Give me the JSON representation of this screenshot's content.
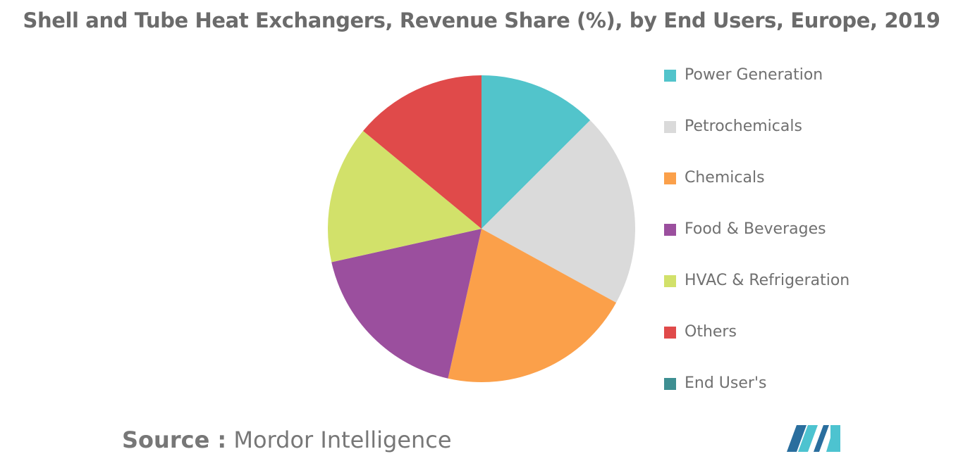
{
  "chart_data": {
    "type": "pie",
    "title": "Shell and Tube Heat Exchangers, Revenue Share (%), by End Users, Europe, 2019",
    "start_angle_deg": 0,
    "direction": "clockwise",
    "legend_position": "right",
    "slices": [
      {
        "name": "Power Generation",
        "value": 12.5,
        "color": "#52C4CB"
      },
      {
        "name": "Petrochemicals",
        "value": 20.5,
        "color": "#DADADA"
      },
      {
        "name": "Chemicals",
        "value": 20.5,
        "color": "#FBA04A"
      },
      {
        "name": "Food & Beverages",
        "value": 18.0,
        "color": "#9B4F9E"
      },
      {
        "name": "HVAC & Refrigeration",
        "value": 14.5,
        "color": "#D2E16A"
      },
      {
        "name": "Others",
        "value": 14.0,
        "color": "#E04A4A"
      },
      {
        "name": "End User's",
        "value": 0,
        "color": "#3E8F92"
      }
    ]
  },
  "source": {
    "label": "Source :",
    "text": "Mordor Intelligence"
  },
  "logo": {
    "icon": "mordor-intelligence-logo-icon",
    "color_dark": "#2A6E9E",
    "color_light": "#4DC3D0"
  }
}
